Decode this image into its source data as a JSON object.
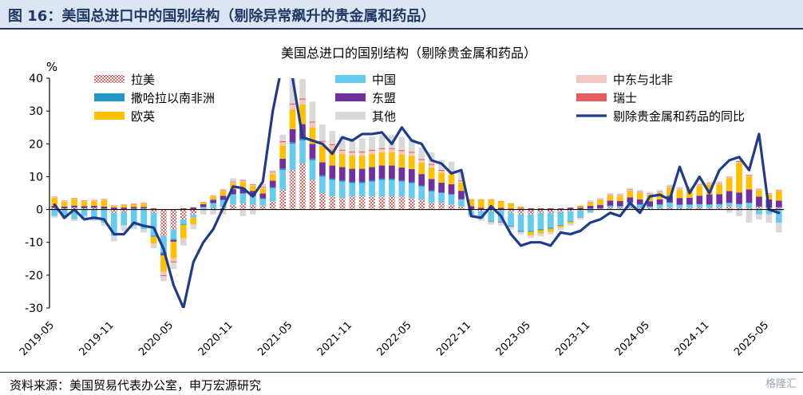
{
  "header": {
    "title": "图 16：美国总进口中的国别结构（剔除异常飙升的贵金属和药品）"
  },
  "footer": {
    "source": "资料来源：美国贸易代表办公室，申万宏源研究",
    "watermark": "格隆汇"
  },
  "chart_data": {
    "type": "bar",
    "stacked": true,
    "title": "美国总进口的国别结构（剔除贵金属和药品）",
    "ylabel": "%",
    "ylim": [
      -30,
      40
    ],
    "yticks": [
      -30,
      -20,
      -10,
      0,
      10,
      20,
      30,
      40
    ],
    "categories": [
      "2019-05",
      "2019-06",
      "2019-07",
      "2019-08",
      "2019-09",
      "2019-10",
      "2019-11",
      "2019-12",
      "2020-01",
      "2020-02",
      "2020-03",
      "2020-04",
      "2020-05",
      "2020-06",
      "2020-07",
      "2020-08",
      "2020-09",
      "2020-10",
      "2020-11",
      "2020-12",
      "2021-01",
      "2021-02",
      "2021-03",
      "2021-04",
      "2021-05",
      "2021-06",
      "2021-07",
      "2021-08",
      "2021-09",
      "2021-10",
      "2021-11",
      "2021-12",
      "2022-01",
      "2022-02",
      "2022-03",
      "2022-04",
      "2022-05",
      "2022-06",
      "2022-07",
      "2022-08",
      "2022-09",
      "2022-10",
      "2022-11",
      "2022-12",
      "2023-01",
      "2023-02",
      "2023-03",
      "2023-04",
      "2023-05",
      "2023-06",
      "2023-07",
      "2023-08",
      "2023-09",
      "2023-10",
      "2023-11",
      "2023-12",
      "2024-01",
      "2024-02",
      "2024-03",
      "2024-04",
      "2024-05",
      "2024-06",
      "2024-07",
      "2024-08",
      "2024-09",
      "2024-10",
      "2024-11",
      "2024-12",
      "2025-01",
      "2025-02",
      "2025-03",
      "2025-04",
      "2025-05",
      "2025-06"
    ],
    "xtick_labels": [
      "2019-05",
      "2019-11",
      "2020-05",
      "2020-11",
      "2021-05",
      "2021-11",
      "2022-05",
      "2022-11",
      "2023-05",
      "2023-11",
      "2024-05",
      "2024-11",
      "2025-05"
    ],
    "legend": {
      "placement": "top",
      "columns": 3
    },
    "series": [
      {
        "name": "拉美",
        "kind": "bar",
        "color": "#e06666",
        "pattern": "hatch",
        "values": [
          0.5,
          0.3,
          0.6,
          0.4,
          0.5,
          0.2,
          -1.0,
          -0.8,
          0.2,
          0.3,
          -1.0,
          -8.0,
          -6.0,
          -3.0,
          -1.5,
          0.2,
          0.4,
          0.8,
          1.5,
          1.8,
          1.5,
          1.2,
          2.5,
          6.0,
          12.0,
          14.0,
          9.0,
          5.0,
          4.0,
          3.5,
          4.0,
          4.0,
          4.0,
          4.0,
          4.0,
          4.0,
          3.5,
          3.0,
          2.0,
          2.0,
          1.5,
          1.0,
          -0.5,
          -0.5,
          -0.5,
          -0.3,
          -1.0,
          -1.5,
          -1.5,
          -1.0,
          -1.0,
          -0.8,
          -0.5,
          -0.3,
          0.2,
          0.3,
          0.6,
          0.5,
          0.6,
          0.5,
          0.4,
          0.5,
          0.6,
          0.4,
          0.5,
          0.6,
          0.5,
          0.6,
          1.0,
          0.6,
          0.5,
          0.8,
          0.5,
          0.6
        ]
      },
      {
        "name": "中国",
        "kind": "bar",
        "color": "#66ccee",
        "values": [
          -2.0,
          -2.0,
          -3.0,
          -2.0,
          -2.5,
          -4.0,
          -7.0,
          -4.0,
          -5.0,
          -6.0,
          -7.0,
          -5.0,
          -3.0,
          -1.5,
          -1.0,
          0.5,
          1.5,
          2.0,
          3.0,
          3.0,
          2.5,
          2.0,
          4.0,
          6.0,
          8.0,
          7.0,
          6.0,
          5.0,
          5.0,
          5.0,
          4.0,
          4.0,
          4.5,
          5.0,
          5.0,
          4.5,
          4.5,
          4.0,
          3.5,
          3.0,
          3.0,
          2.0,
          -1.0,
          -2.0,
          -3.0,
          -3.5,
          -4.0,
          -5.0,
          -5.0,
          -5.0,
          -4.5,
          -4.0,
          -3.0,
          -2.0,
          -1.0,
          0.0,
          0.5,
          0.5,
          1.5,
          1.0,
          0.5,
          1.0,
          1.5,
          1.0,
          1.0,
          1.0,
          1.0,
          1.0,
          1.0,
          1.0,
          1.5,
          -1.5,
          -1.5,
          -4.0
        ]
      },
      {
        "name": "撒哈拉以南非洲",
        "kind": "bar",
        "color": "#2196c8",
        "values": [
          0.1,
          0.1,
          0.1,
          0.1,
          0.1,
          0.1,
          0.1,
          0.1,
          0.1,
          0.1,
          -0.3,
          -0.5,
          -0.3,
          -0.2,
          0.1,
          0.1,
          0.1,
          0.2,
          0.2,
          0.2,
          0.2,
          0.2,
          0.3,
          0.5,
          0.5,
          0.5,
          0.5,
          0.4,
          0.4,
          0.4,
          0.4,
          0.4,
          0.4,
          0.4,
          0.4,
          0.3,
          0.3,
          0.3,
          0.3,
          0.2,
          0.2,
          0.2,
          -0.1,
          -0.1,
          -0.2,
          -0.2,
          -0.2,
          -0.3,
          -0.3,
          -0.3,
          -0.3,
          -0.2,
          -0.2,
          -0.1,
          0.1,
          0.1,
          0.1,
          0.1,
          0.1,
          0.1,
          0.1,
          0.1,
          0.1,
          0.1,
          0.1,
          0.1,
          0.1,
          0.1,
          0.1,
          0.1,
          0.1,
          0.1,
          0.1,
          0.1
        ]
      },
      {
        "name": "东盟",
        "kind": "bar",
        "color": "#7030a0",
        "values": [
          0.5,
          0.5,
          0.5,
          0.5,
          0.5,
          0.6,
          0.5,
          0.5,
          0.5,
          0.4,
          0.3,
          -0.5,
          -0.5,
          0.3,
          0.5,
          0.8,
          1.0,
          1.2,
          1.5,
          1.5,
          1.5,
          1.5,
          2.0,
          3.0,
          4.0,
          4.5,
          4.5,
          4.0,
          4.0,
          4.0,
          4.0,
          4.0,
          4.0,
          4.0,
          4.0,
          4.0,
          4.0,
          3.5,
          3.5,
          3.0,
          3.0,
          2.5,
          1.0,
          0.5,
          0.5,
          0.5,
          0.3,
          0.3,
          0.3,
          0.3,
          0.3,
          0.3,
          0.5,
          0.5,
          0.8,
          1.0,
          1.5,
          1.5,
          1.5,
          1.5,
          1.5,
          1.5,
          2.0,
          2.0,
          2.0,
          2.5,
          3.0,
          3.0,
          3.5,
          3.5,
          4.0,
          3.0,
          2.5,
          2.0
        ]
      },
      {
        "name": "欧英",
        "kind": "bar",
        "color": "#ffc000",
        "values": [
          2.5,
          1.5,
          2.0,
          1.5,
          1.5,
          2.0,
          0.5,
          0.8,
          0.8,
          1.0,
          -2.0,
          -5.0,
          -5.0,
          -4.0,
          -2.0,
          0.5,
          1.0,
          1.5,
          1.8,
          2.0,
          1.5,
          1.5,
          2.0,
          4.0,
          6.0,
          6.0,
          5.0,
          5.0,
          5.0,
          4.0,
          4.0,
          4.0,
          4.0,
          4.0,
          4.0,
          4.0,
          4.0,
          3.5,
          3.5,
          3.0,
          3.0,
          2.5,
          2.0,
          2.5,
          2.5,
          2.0,
          1.5,
          0.5,
          -1.0,
          -1.0,
          -1.0,
          -0.5,
          -0.5,
          0.5,
          1.0,
          1.5,
          1.5,
          1.5,
          2.0,
          2.0,
          2.0,
          2.0,
          2.5,
          2.5,
          2.5,
          3.0,
          3.0,
          3.0,
          4.0,
          9.0,
          4.0,
          2.0,
          1.5,
          3.0
        ]
      },
      {
        "name": "中东与北非",
        "kind": "bar",
        "color": "#f4c7c3",
        "values": [
          0.2,
          0.2,
          0.2,
          0.2,
          0.2,
          0.2,
          -0.2,
          -0.2,
          0.1,
          0.1,
          -0.5,
          -1.0,
          -1.0,
          -0.8,
          -0.5,
          0.1,
          0.2,
          0.2,
          0.3,
          0.3,
          0.3,
          0.3,
          0.5,
          1.0,
          1.5,
          1.5,
          1.5,
          1.2,
          1.2,
          1.0,
          1.0,
          1.0,
          1.0,
          1.0,
          1.0,
          1.0,
          1.0,
          0.8,
          0.8,
          0.6,
          0.6,
          0.5,
          -0.3,
          -0.3,
          -0.4,
          -0.4,
          -0.4,
          -0.4,
          -0.4,
          -0.4,
          -0.3,
          -0.3,
          -0.2,
          -0.2,
          0.1,
          0.1,
          0.2,
          0.2,
          0.3,
          0.3,
          0.3,
          0.3,
          0.3,
          0.3,
          0.3,
          0.3,
          0.3,
          0.3,
          0.3,
          0.3,
          0.3,
          0.3,
          0.2,
          0.2
        ]
      },
      {
        "name": "瑞士",
        "kind": "bar",
        "color": "#e65c5c",
        "values": [
          0.1,
          0.1,
          0.1,
          0.1,
          0.1,
          0.1,
          0.1,
          0.1,
          0.1,
          0.1,
          0.1,
          -0.3,
          -0.3,
          0.1,
          0.1,
          0.1,
          0.1,
          0.2,
          0.2,
          0.2,
          0.2,
          0.2,
          0.2,
          0.3,
          0.3,
          0.3,
          0.3,
          0.3,
          0.3,
          0.3,
          0.3,
          0.3,
          0.3,
          0.3,
          0.3,
          0.3,
          0.3,
          0.3,
          0.3,
          0.3,
          0.3,
          0.2,
          0.1,
          0.1,
          0.1,
          0.1,
          0.1,
          0.1,
          0.1,
          0.1,
          0.1,
          0.1,
          0.1,
          0.1,
          0.1,
          0.1,
          0.1,
          0.1,
          0.1,
          0.1,
          0.1,
          0.1,
          0.1,
          0.1,
          0.1,
          0.1,
          0.1,
          0.1,
          0.1,
          0.3,
          0.2,
          0.1,
          0.1,
          0.1
        ]
      },
      {
        "name": "其他",
        "kind": "bar",
        "color": "#d9d9d9",
        "values": [
          -0.5,
          -1.0,
          -0.5,
          -1.0,
          -1.0,
          -1.0,
          -1.5,
          -1.5,
          -1.0,
          -1.0,
          -1.0,
          -1.5,
          -2.0,
          -1.5,
          -1.0,
          -1.5,
          -1.5,
          -1.5,
          1.0,
          -2.0,
          -1.5,
          1.0,
          0.5,
          2.0,
          10.0,
          6.0,
          6.0,
          5.0,
          4.0,
          4.0,
          4.0,
          4.0,
          4.0,
          4.0,
          4.0,
          4.0,
          4.0,
          3.5,
          3.5,
          3.0,
          3.0,
          2.5,
          -0.5,
          -0.5,
          -0.5,
          -0.5,
          -0.5,
          -0.5,
          -0.5,
          -0.5,
          -0.5,
          -0.5,
          -0.5,
          -0.5,
          0.5,
          0.5,
          0.5,
          0.5,
          0.5,
          0.5,
          0.5,
          0.5,
          0.5,
          0.5,
          0.5,
          0.5,
          0.5,
          0.5,
          -1.0,
          -2.0,
          -4.0,
          -1.5,
          -2.5,
          -3.0
        ]
      },
      {
        "name": "剔除贵金属和药品的同比",
        "kind": "line",
        "color": "#1f3b8c",
        "values": [
          1.5,
          -2.5,
          0.0,
          -3.0,
          -2.5,
          -3.0,
          -7.5,
          -7.5,
          -4.0,
          -5.0,
          -5.5,
          -12.0,
          -23.0,
          -30.0,
          -16.0,
          -10.0,
          -6.0,
          0.5,
          7.0,
          6.5,
          4.0,
          8.5,
          30.0,
          45.0,
          40.0,
          22.0,
          21.0,
          20.0,
          17.0,
          22.0,
          21.0,
          23.0,
          23.0,
          23.5,
          20.0,
          25.0,
          21.0,
          20.0,
          15.0,
          14.0,
          11.0,
          12.0,
          -2.0,
          -2.5,
          1.0,
          -2.0,
          -7.5,
          -11.0,
          -10.0,
          -10.0,
          -11.0,
          -7.0,
          -7.5,
          -6.5,
          -4.0,
          -3.0,
          -1.0,
          -2.0,
          2.0,
          -1.0,
          4.0,
          4.5,
          3.0,
          13.0,
          5.0,
          10.0,
          5.0,
          12.0,
          15.0,
          16.0,
          12.0,
          23.0,
          0.0,
          -1.0
        ]
      }
    ]
  }
}
